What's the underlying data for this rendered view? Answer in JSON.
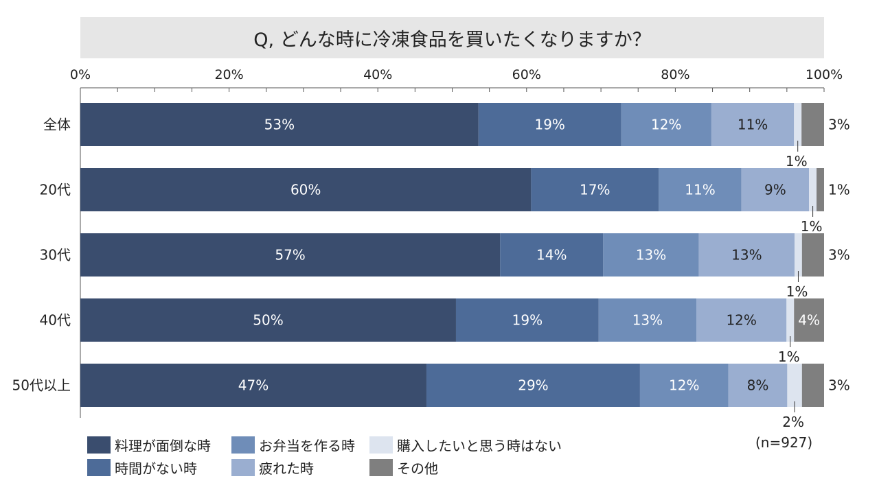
{
  "chart_data": {
    "type": "bar",
    "orientation": "horizontal",
    "stacked": true,
    "title": "Q, どんな時に冷凍食品を買いたくなりますか？",
    "note": "(n=927)",
    "xlim": [
      0,
      100
    ],
    "x_ticks": [
      "0%",
      "20%",
      "40%",
      "60%",
      "80%",
      "100%"
    ],
    "categories": [
      "全体",
      "20代",
      "30代",
      "40代",
      "50代以上"
    ],
    "series": [
      {
        "name": "料理が面倒な時",
        "color": "#3a4d6e",
        "values": [
          53,
          60,
          57,
          50,
          47
        ],
        "labels": [
          "53%",
          "60%",
          "57%",
          "50%",
          "47%"
        ]
      },
      {
        "name": "時間がない時",
        "color": "#4d6b98",
        "values": [
          19,
          17,
          14,
          19,
          29
        ],
        "labels": [
          "19%",
          "17%",
          "14%",
          "19%",
          "29%"
        ]
      },
      {
        "name": "お弁当を作る時",
        "color": "#6f8db8",
        "values": [
          12,
          11,
          13,
          13,
          12
        ],
        "labels": [
          "12%",
          "11%",
          "13%",
          "13%",
          "12%"
        ]
      },
      {
        "name": "疲れた時",
        "color": "#9aaed0",
        "values": [
          11,
          9,
          13,
          12,
          8
        ],
        "labels": [
          "11%",
          "9%",
          "13%",
          "12%",
          "8%"
        ]
      },
      {
        "name": "購入したいと思う時はない",
        "color": "#dde4ef",
        "values": [
          1,
          1,
          1,
          1,
          2
        ],
        "labels": [
          "1%",
          "1%",
          "1%",
          "1%",
          "2%"
        ]
      },
      {
        "name": "その他",
        "color": "#7f7f7f",
        "values": [
          3,
          1,
          3,
          4,
          3
        ],
        "labels": [
          "3%",
          "1%",
          "3%",
          "4%",
          "3%"
        ]
      }
    ],
    "legend_position": "bottom-left",
    "grid": false
  }
}
